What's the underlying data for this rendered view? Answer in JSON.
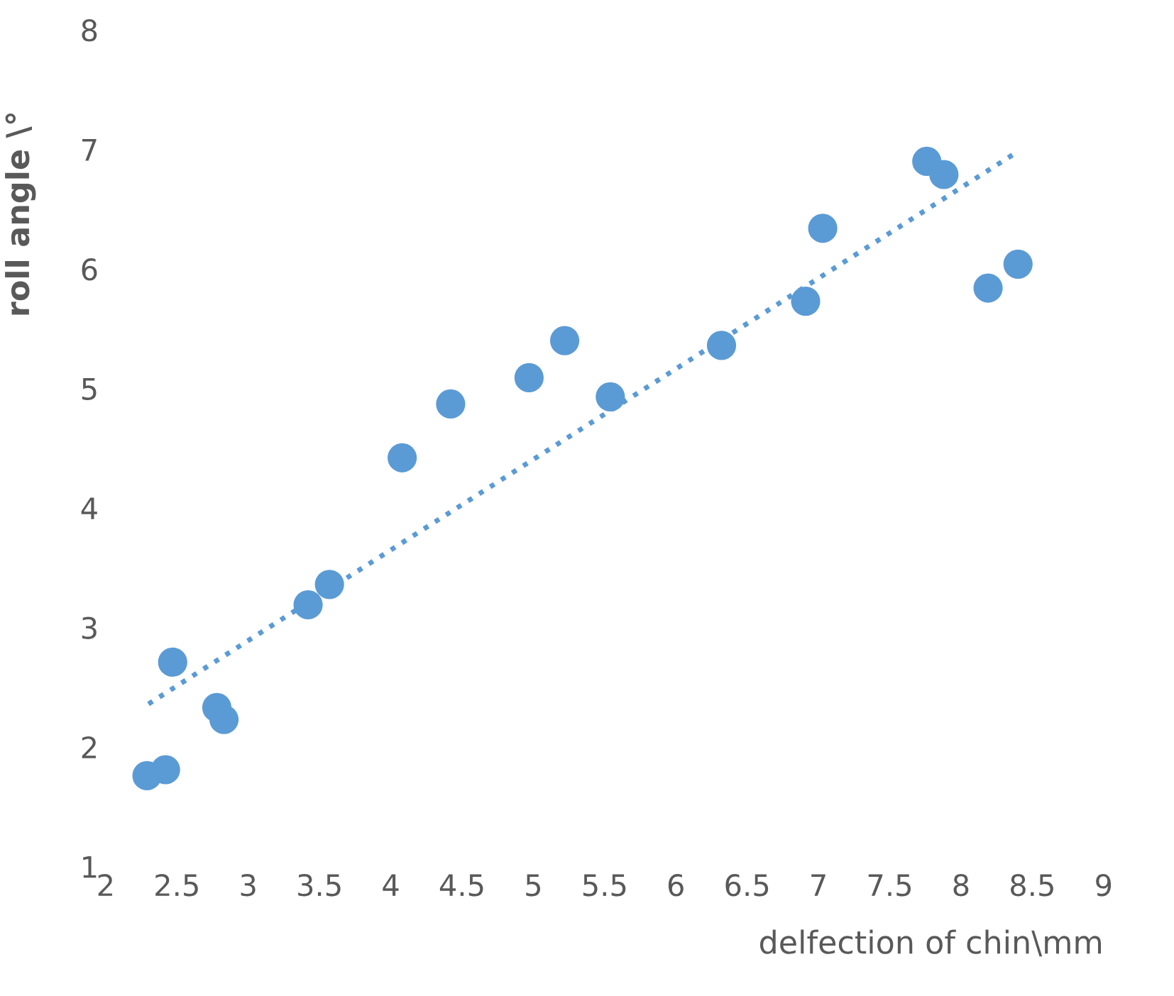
{
  "chart_data": {
    "type": "scatter",
    "xlabel": "delfection of chin\\mm",
    "ylabel": "roll angle \\°",
    "series": [
      {
        "color": "#5b9bd5",
        "x": [
          2.29,
          2.42,
          2.47,
          2.78,
          2.83,
          3.42,
          3.57,
          4.08,
          4.42,
          4.97,
          5.22,
          5.54,
          6.32,
          6.91,
          7.03,
          7.76,
          7.88,
          8.19,
          8.4
        ],
        "values": [
          1.76,
          1.81,
          2.71,
          2.33,
          2.23,
          3.19,
          3.36,
          4.42,
          4.87,
          5.09,
          5.4,
          4.93,
          5.36,
          5.73,
          6.34,
          6.9,
          6.79,
          5.84,
          6.04
        ]
      },
      {
        "type": "line",
        "color": "#5b9bd5",
        "line_style": "dotted",
        "x": [
          2.3,
          8.37
        ],
        "values": [
          2.36,
          6.96
        ]
      }
    ],
    "xlim": [
      2,
      9
    ],
    "ylim": [
      1,
      8
    ],
    "xticks": [
      2,
      2.5,
      3,
      3.5,
      4,
      4.5,
      5,
      5.5,
      6,
      6.5,
      7,
      7.5,
      8,
      8.5,
      9
    ],
    "yticks": [
      1,
      2,
      3,
      4,
      5,
      6,
      7,
      8
    ],
    "grid": false,
    "legend": false
  }
}
